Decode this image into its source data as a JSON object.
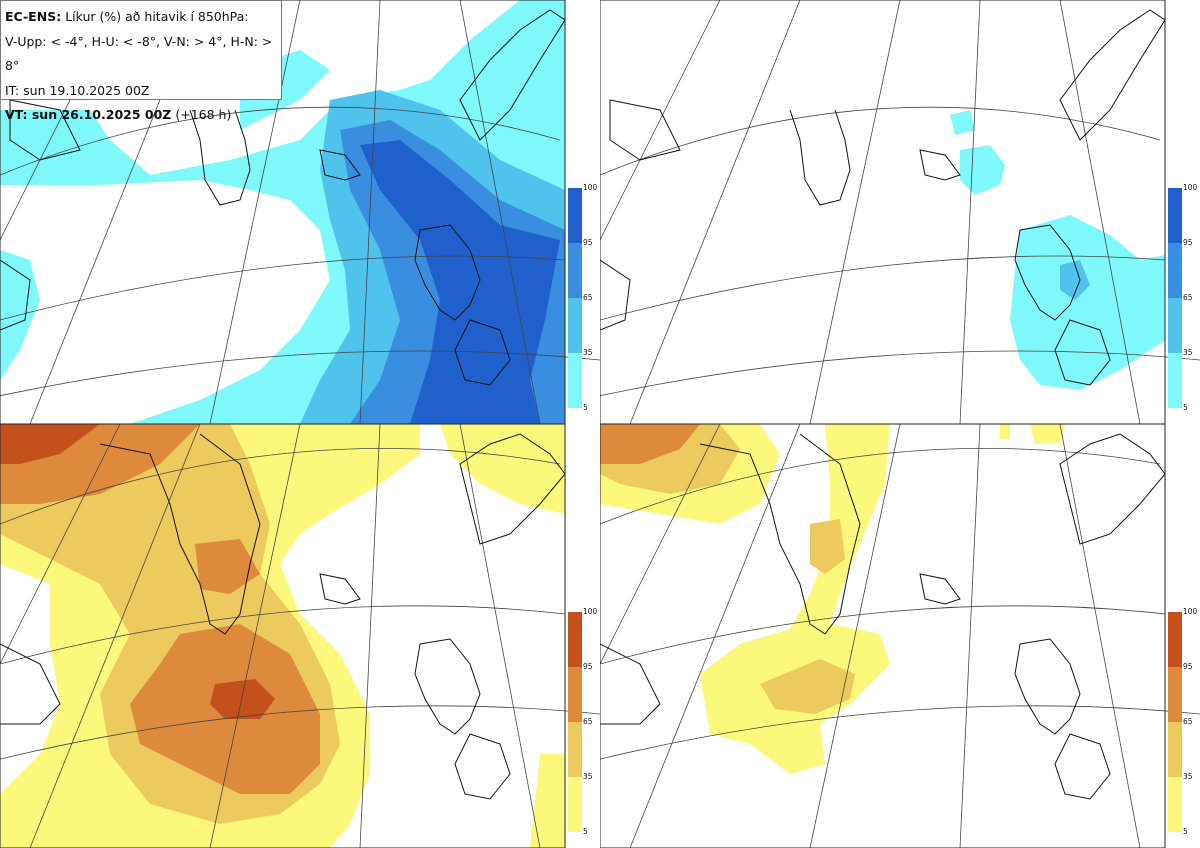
{
  "header": {
    "line1_bold": "EC-ENS:",
    "line1_rest": "Líkur (%) að hitavik í 850hPa:",
    "line2": "V-Upp: < -4°, H-U: < -8°, V-N: > 4°, H-N: > 8°",
    "line3": "IT: sun 19.10.2025 00Z",
    "line4_bold": "VT: sun 26.10.2025 00Z",
    "line4_rest": "(+168 h)"
  },
  "colorbar_ticks": [
    "100",
    "95",
    "65",
    "35",
    "5"
  ],
  "colors": {
    "cold": [
      "#7ff8fb",
      "#4fc3ec",
      "#3a8ee0",
      "#2060cc"
    ],
    "warm": [
      "#fbf87c",
      "#edca5d",
      "#dd8a3c",
      "#c4511c"
    ]
  },
  "panels": [
    {
      "id": "top-left",
      "scheme": "cold"
    },
    {
      "id": "top-right",
      "scheme": "cold"
    },
    {
      "id": "bottom-left",
      "scheme": "warm"
    },
    {
      "id": "bottom-right",
      "scheme": "warm"
    }
  ]
}
